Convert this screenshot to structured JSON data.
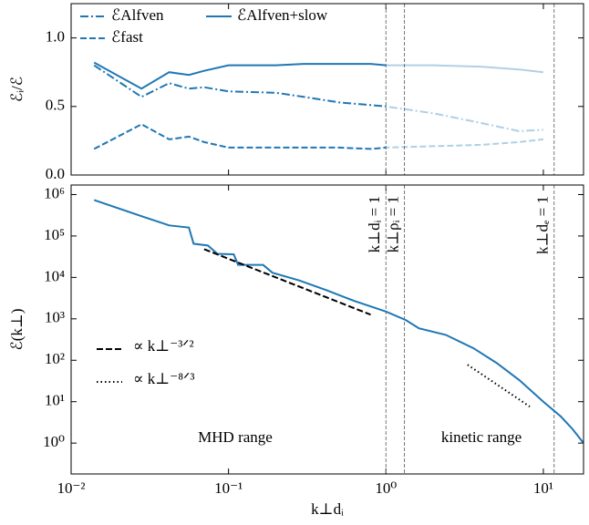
{
  "chart_data": [
    {
      "type": "line",
      "ylabel": "ℰᵢ/ℰ",
      "xlim": [
        0.01,
        18
      ],
      "ylim": [
        0,
        1.25
      ],
      "xscale": "log",
      "yticks": [
        {
          "value": 0,
          "label": "0.0"
        },
        0.5,
        {
          "value": 1,
          "label": "1.0"
        }
      ],
      "fade_after": 1,
      "x": [
        0.014,
        0.028,
        0.042,
        0.056,
        0.07,
        0.1,
        0.2,
        0.3,
        0.5,
        0.8,
        1,
        2,
        4,
        7,
        10
      ],
      "series": [
        {
          "name": "ℰAlfven",
          "color": "#1f77b4",
          "dash": "dashdot",
          "values": [
            0.8,
            0.57,
            0.67,
            0.63,
            0.64,
            0.61,
            0.6,
            0.57,
            0.53,
            0.51,
            0.5,
            0.45,
            0.38,
            0.32,
            0.33
          ]
        },
        {
          "name": "ℰfast",
          "color": "#1f77b4",
          "dash": "dashed",
          "values": [
            0.19,
            0.37,
            0.26,
            0.28,
            0.24,
            0.2,
            0.2,
            0.2,
            0.2,
            0.19,
            0.2,
            0.21,
            0.22,
            0.24,
            0.26
          ]
        },
        {
          "name": "ℰAlfven+slow",
          "color": "#1f77b4",
          "dash": "solid",
          "values": [
            0.82,
            0.63,
            0.75,
            0.73,
            0.76,
            0.8,
            0.8,
            0.81,
            0.81,
            0.81,
            0.8,
            0.8,
            0.79,
            0.77,
            0.75
          ]
        }
      ]
    },
    {
      "type": "line",
      "xlabel": "k⊥dᵢ",
      "ylabel": "ℰ(k⊥)",
      "xlim": [
        0.01,
        18
      ],
      "ylim": [
        0.18,
        1700000
      ],
      "xscale": "log",
      "yscale": "log",
      "xticks": [
        {
          "value": 0.01,
          "label": "10⁻²"
        },
        {
          "value": 0.1,
          "label": "10⁻¹"
        },
        {
          "value": 1,
          "label": "10⁰"
        },
        {
          "value": 10,
          "label": "10¹"
        }
      ],
      "yticks": [
        {
          "value": 1,
          "label": "10⁰"
        },
        {
          "value": 10,
          "label": "10¹"
        },
        {
          "value": 100,
          "label": "10²"
        },
        {
          "value": 1000,
          "label": "10³"
        },
        {
          "value": 10000,
          "label": "10⁴"
        },
        {
          "value": 100000,
          "label": "10⁵"
        },
        {
          "value": 1000000,
          "label": "10⁶"
        }
      ],
      "vlines": [
        {
          "value": 1,
          "label": "k⊥dᵢ = 1"
        },
        {
          "value": 1.31,
          "label": "k⊥ρᵢ = 1"
        },
        {
          "value": 11.7,
          "label": "k⊥dₑ = 1"
        }
      ],
      "x": [
        0.014,
        0.028,
        0.042,
        0.056,
        0.06,
        0.074,
        0.085,
        0.108,
        0.115,
        0.166,
        0.19,
        0.28,
        0.42,
        0.63,
        1,
        1.34,
        1.62,
        2.4,
        3.6,
        5.05,
        7.05,
        10,
        12.9,
        15.3,
        18
      ],
      "series": [
        {
          "color": "#1f77b4",
          "dash": "solid",
          "values": [
            740000,
            300000,
            180000,
            160000,
            65000,
            59000,
            37000,
            36000,
            20000,
            20000,
            13000,
            8500,
            4900,
            2700,
            1500,
            930,
            590,
            410,
            195,
            86,
            33,
            10,
            4.4,
            2.2,
            1
          ]
        }
      ],
      "reference_lines": [
        {
          "label": "∝ k⊥⁻³ᐟ²",
          "dash": "dashed",
          "x": [
            0.07,
            0.8
          ],
          "y": [
            48000,
            1260
          ]
        },
        {
          "label": "∝ k⊥⁻⁸ᐟ³",
          "dash": "dotted",
          "x": [
            3.3,
            8.2
          ],
          "y": [
            78,
            7.6
          ]
        }
      ],
      "annotations": [
        "MHD range",
        "kinetic range"
      ]
    }
  ]
}
